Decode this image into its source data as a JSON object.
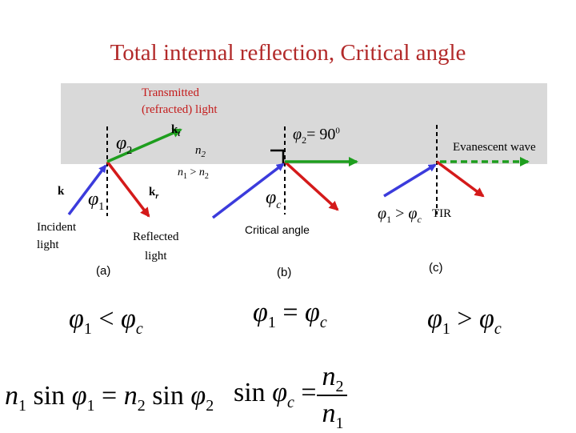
{
  "title": "Total internal reflection, Critical angle",
  "labels": {
    "transmitted_1": "Transmitted",
    "transmitted_2": "(refracted) light",
    "k_t": "k",
    "k_t_sub": "t",
    "k_i": "k",
    "k_r": "k",
    "k_r_sub": "r",
    "n2": "n",
    "n2_sub": "2",
    "n1_gt_n2": "n",
    "n1_sub": "1",
    "gt": ">",
    "n2b": "n",
    "n2b_sub": "2",
    "incident_1": "Incident",
    "incident_2": "light",
    "reflected_1": "Reflected",
    "reflected_2": "light",
    "phi2_a": "φ",
    "phi2_a_sub": "2",
    "phi1_a": "φ",
    "phi1_a_sub": "1",
    "phi2_b": "φ",
    "phi2_b_sub": "2",
    "phi2_b_eq": "= 90",
    "phic_b": "φ",
    "phic_b_sub": "c",
    "phi1_c": "φ",
    "phi1_c_sub": "1",
    "phi1_c_rel": ">",
    "phic_c": "φ",
    "phic_c_sub": "c",
    "evanescent": "Evanescent wave",
    "tir": "TIR",
    "critical_angle": "Critical angle",
    "panel_a": "(a)",
    "panel_b": "(b)",
    "panel_c": "(c)"
  },
  "equations": {
    "cond_a": {
      "lhs": "φ",
      "lhs_sub": "1",
      "op": "<",
      "rhs": "φ",
      "rhs_sub": "c"
    },
    "cond_b": {
      "lhs": "φ",
      "lhs_sub": "1",
      "op": "=",
      "rhs": "φ",
      "rhs_sub": "c"
    },
    "cond_c": {
      "lhs": "φ",
      "lhs_sub": "1",
      "op": ">",
      "rhs": "φ",
      "rhs_sub": "c"
    },
    "snell": {
      "n1": "n",
      "n1_sub": "1",
      "sin1": "sin",
      "phi1": "φ",
      "phi1_sub": "1",
      "eq": "=",
      "n2": "n",
      "n2_sub": "2",
      "sin2": "sin",
      "phi2": "φ",
      "phi2_sub": "2"
    },
    "critical": {
      "sin": "sin",
      "phi": "φ",
      "phi_sub": "c",
      "eq": "=",
      "num": "n",
      "num_sub": "2",
      "den": "n",
      "den_sub": "1"
    }
  },
  "colors": {
    "incident": "#3b3bdc",
    "reflected": "#d41a1a",
    "transmitted": "#1e9e1e",
    "medium": "#d9d9d9",
    "title": "#b22a2a"
  }
}
